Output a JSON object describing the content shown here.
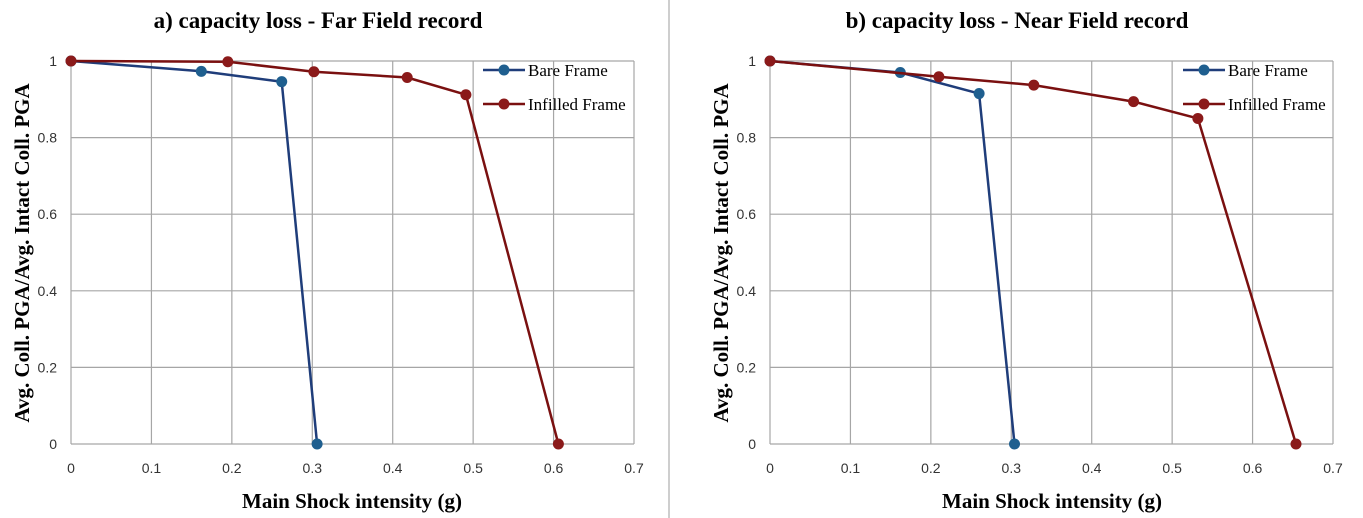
{
  "colors": {
    "bare": "#1f3d7a",
    "bare_marker": "#1f5f8f",
    "infilled": "#7a1010",
    "infilled_marker": "#8b1a1a",
    "grid": "#a6a6a6",
    "divider": "#bdbdbd"
  },
  "chart_data": [
    {
      "type": "line",
      "title": "a) capacity loss - Far Field record",
      "xlabel": "Main Shock intensity (g)",
      "ylabel": "Avg. Coll. PGA/Avg. Intact Coll. PGA",
      "xlim": [
        0,
        0.7
      ],
      "ylim": [
        0,
        1
      ],
      "xticks": [
        0,
        0.1,
        0.2,
        0.3,
        0.4,
        0.5,
        0.6,
        0.7
      ],
      "xtick_labels": [
        "0",
        "0.1",
        "0.2",
        "0.3",
        "0.4",
        "0.5",
        "0.6",
        "0.7"
      ],
      "yticks": [
        0,
        0.2,
        0.4,
        0.6,
        0.8,
        1
      ],
      "ytick_labels": [
        "0",
        "0.2",
        "0.4",
        "0.6",
        "0.8",
        "1"
      ],
      "grid": true,
      "legend_position": "top-right",
      "series": [
        {
          "name": "Bare Frame",
          "x": [
            0,
            0.162,
            0.262,
            0.306
          ],
          "y": [
            1,
            0.973,
            0.946,
            0
          ]
        },
        {
          "name": "Infilled Frame",
          "x": [
            0,
            0.195,
            0.302,
            0.418,
            0.491,
            0.606
          ],
          "y": [
            1,
            0.998,
            0.972,
            0.957,
            0.912,
            0
          ]
        }
      ]
    },
    {
      "type": "line",
      "title": "b) capacity loss - Near Field record",
      "xlabel": "Main Shock intensity (g)",
      "ylabel": "Avg. Coll. PGA/Avg. Intact Coll. PGA",
      "xlim": [
        0,
        0.7
      ],
      "ylim": [
        0,
        1
      ],
      "xticks": [
        0,
        0.1,
        0.2,
        0.3,
        0.4,
        0.5,
        0.6,
        0.7
      ],
      "xtick_labels": [
        "0",
        "0.1",
        "0.2",
        "0.3",
        "0.4",
        "0.5",
        "0.6",
        "0.7"
      ],
      "yticks": [
        0,
        0.2,
        0.4,
        0.6,
        0.8,
        1
      ],
      "ytick_labels": [
        "0",
        "0.2",
        "0.4",
        "0.6",
        "0.8",
        "1"
      ],
      "grid": true,
      "legend_position": "top-right",
      "series": [
        {
          "name": "Bare Frame",
          "x": [
            0,
            0.162,
            0.26,
            0.304
          ],
          "y": [
            1,
            0.97,
            0.915,
            0
          ]
        },
        {
          "name": "Infilled Frame",
          "x": [
            0,
            0.21,
            0.328,
            0.452,
            0.532,
            0.654
          ],
          "y": [
            1,
            0.959,
            0.937,
            0.894,
            0.85,
            0
          ]
        }
      ]
    }
  ]
}
